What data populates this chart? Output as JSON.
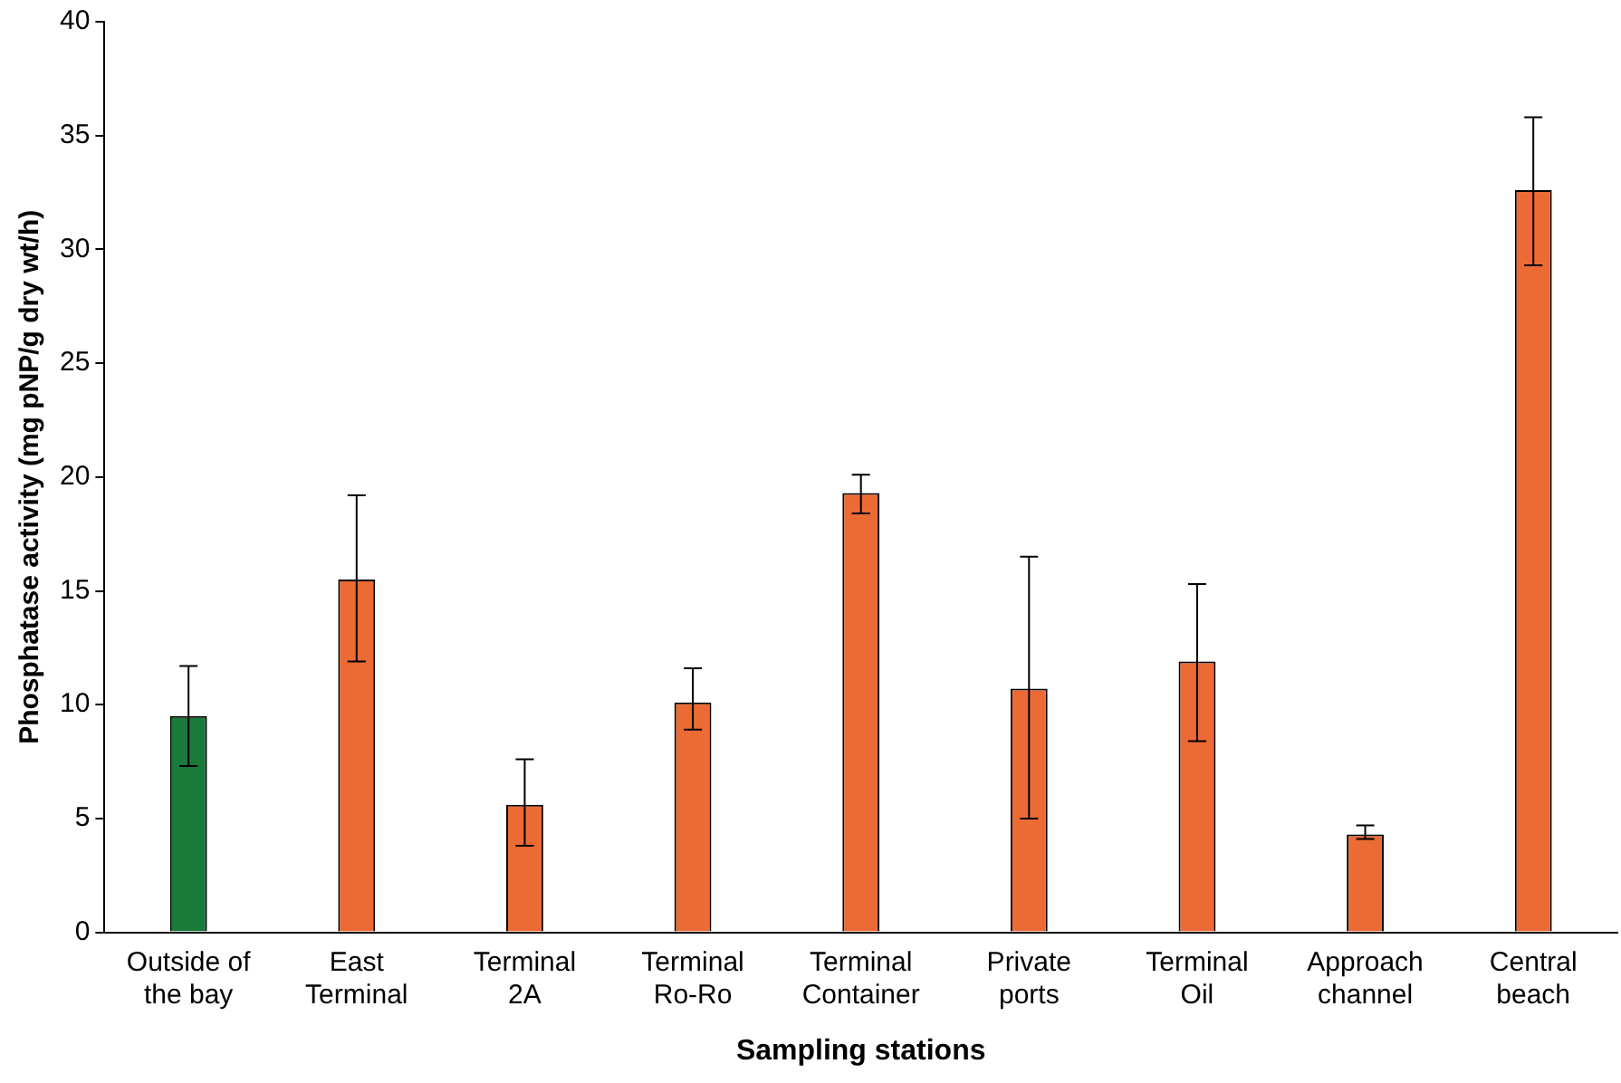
{
  "chart_data": {
    "type": "bar",
    "xlabel": "Sampling stations",
    "ylabel": "Phosphatase activity (mg pNP/g dry wt/h)",
    "categories": [
      "Outside of\nthe bay",
      "East\nTerminal",
      "Terminal\n2A",
      "Terminal\nRo-Ro",
      "Terminal\nContainer",
      "Private\nports",
      "Terminal\nOil",
      "Approach\nchannel",
      "Central\nbeach"
    ],
    "values": [
      9.5,
      15.5,
      5.6,
      10.1,
      19.3,
      10.7,
      11.9,
      4.3,
      32.6
    ],
    "errors": [
      [
        7.3,
        11.7
      ],
      [
        11.9,
        19.2
      ],
      [
        3.8,
        7.6
      ],
      [
        8.9,
        11.6
      ],
      [
        18.4,
        20.1
      ],
      [
        5.0,
        16.5
      ],
      [
        8.4,
        15.3
      ],
      [
        4.1,
        4.7
      ],
      [
        29.3,
        35.8
      ]
    ],
    "colors": [
      "#1a7a3a",
      "#ec6a33",
      "#ec6a33",
      "#ec6a33",
      "#ec6a33",
      "#ec6a33",
      "#ec6a33",
      "#ec6a33",
      "#ec6a33"
    ],
    "ylim": [
      0,
      40
    ],
    "yticks": [
      0,
      5,
      10,
      15,
      20,
      25,
      30,
      35,
      40
    ],
    "grid": false,
    "legend": false
  }
}
